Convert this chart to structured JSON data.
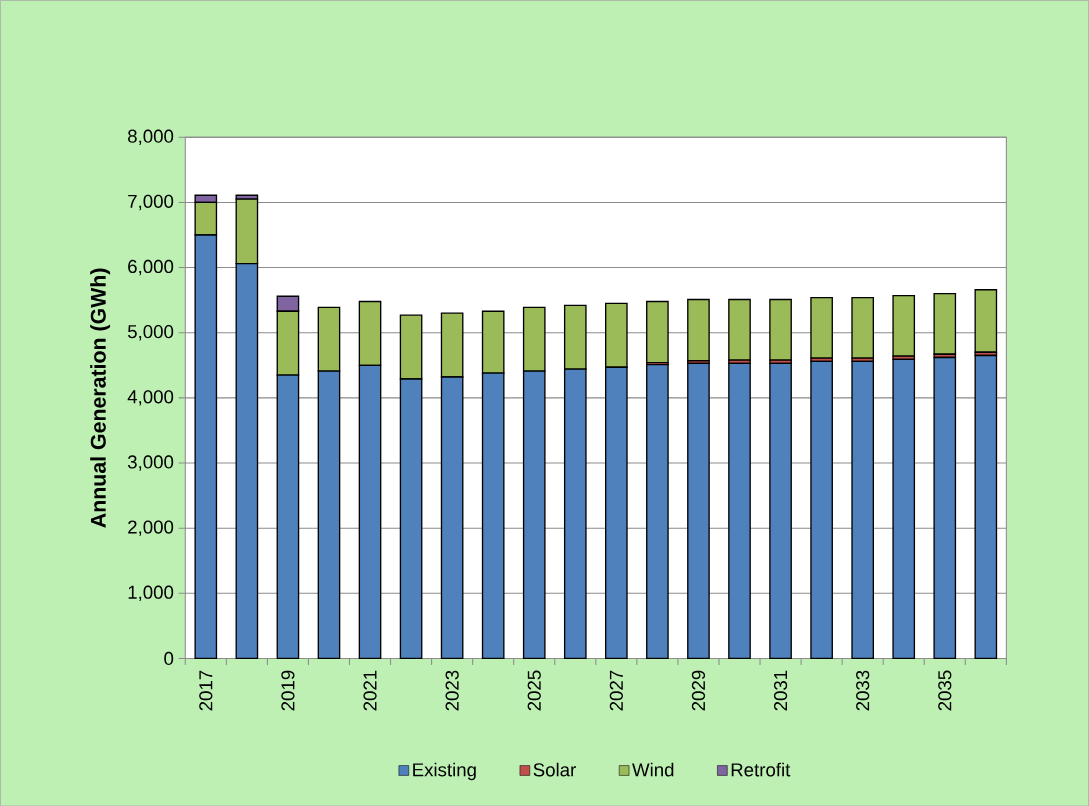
{
  "chart_data": {
    "type": "bar",
    "stacked": true,
    "ylabel": "Annual Generation (GWh)",
    "categories": [
      "2017",
      null,
      "2019",
      null,
      "2021",
      null,
      "2023",
      null,
      "2025",
      null,
      "2027",
      null,
      "2029",
      null,
      "2031",
      null,
      "2033",
      null,
      "2035",
      null
    ],
    "series": [
      {
        "name": "Existing",
        "color": "#4f81bd",
        "values": [
          6500,
          6060,
          4350,
          4410,
          4500,
          4290,
          4320,
          4380,
          4410,
          4440,
          4470,
          4510,
          4530,
          4530,
          4530,
          4560,
          4560,
          4590,
          4620,
          4650
        ]
      },
      {
        "name": "Solar",
        "color": "#c0504d",
        "values": [
          0,
          0,
          0,
          0,
          0,
          0,
          0,
          0,
          0,
          0,
          0,
          30,
          40,
          50,
          50,
          50,
          50,
          50,
          50,
          50
        ]
      },
      {
        "name": "Wind",
        "color": "#9bbb59",
        "values": [
          500,
          990,
          980,
          980,
          980,
          980,
          980,
          950,
          980,
          980,
          980,
          940,
          940,
          930,
          930,
          930,
          930,
          930,
          930,
          960
        ]
      },
      {
        "name": "Retrofit",
        "color": "#8064a2",
        "values": [
          110,
          60,
          230,
          0,
          0,
          0,
          0,
          0,
          0,
          0,
          0,
          0,
          0,
          0,
          0,
          0,
          0,
          0,
          0,
          0
        ]
      }
    ],
    "ylim": [
      0,
      8000
    ],
    "yticks": [
      0,
      {
        "value": 1000,
        "label": "1,000"
      },
      {
        "value": 2000,
        "label": "2,000"
      },
      {
        "value": 3000,
        "label": "3,000"
      },
      {
        "value": 4000,
        "label": "4,000"
      },
      {
        "value": 5000,
        "label": "5,000"
      },
      {
        "value": 6000,
        "label": "6,000"
      },
      {
        "value": 7000,
        "label": "7,000"
      },
      {
        "value": 8000,
        "label": "8,000"
      }
    ],
    "grid": "y",
    "legend": "bottom"
  }
}
